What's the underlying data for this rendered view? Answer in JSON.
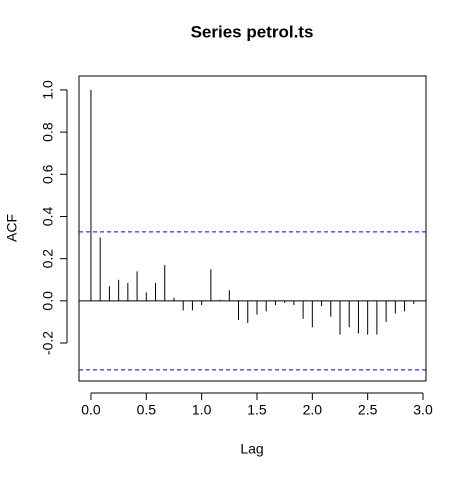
{
  "chart_data": {
    "type": "acf",
    "title": "Series  petrol.ts",
    "xlabel": "Lag",
    "ylabel": "ACF",
    "x": [
      0,
      0.0833,
      0.1667,
      0.25,
      0.3333,
      0.4167,
      0.5,
      0.5833,
      0.6667,
      0.75,
      0.8333,
      0.9167,
      1,
      1.0833,
      1.1667,
      1.25,
      1.3333,
      1.4167,
      1.5,
      1.5833,
      1.6667,
      1.75,
      1.8333,
      1.9167,
      2,
      2.0833,
      2.1667,
      2.25,
      2.3333,
      2.4167,
      2.5,
      2.5833,
      2.6667,
      2.75,
      2.8333,
      2.9167
    ],
    "values": [
      1.0,
      0.3,
      0.07,
      0.1,
      0.085,
      0.14,
      0.04,
      0.085,
      0.17,
      0.015,
      -0.045,
      -0.045,
      -0.02,
      0.15,
      0.005,
      0.05,
      -0.09,
      -0.105,
      -0.065,
      -0.05,
      -0.02,
      -0.01,
      -0.02,
      -0.085,
      -0.125,
      -0.025,
      -0.075,
      -0.16,
      -0.125,
      -0.155,
      -0.16,
      -0.16,
      -0.1,
      -0.06,
      -0.05,
      -0.015
    ],
    "color": "#000000",
    "ci": [
      0.327,
      -0.327
    ],
    "ci_color": "#0000ff",
    "xlim": [
      -0.108,
      3.027
    ],
    "ylim": [
      -0.38,
      1.066
    ],
    "xticks": [
      {
        "value": 0,
        "label": "0.0"
      },
      {
        "value": 0.5,
        "label": "0.5"
      },
      {
        "value": 1,
        "label": "1.0"
      },
      {
        "value": 1.5,
        "label": "1.5"
      },
      {
        "value": 2,
        "label": "2.0"
      },
      {
        "value": 2.5,
        "label": "2.5"
      },
      {
        "value": 3,
        "label": "3.0"
      }
    ],
    "yticks": [
      -0.2,
      {
        "value": 0,
        "label": "0.0"
      },
      0.2,
      0.4,
      0.6,
      0.8,
      {
        "value": 1,
        "label": "1.0"
      }
    ]
  }
}
